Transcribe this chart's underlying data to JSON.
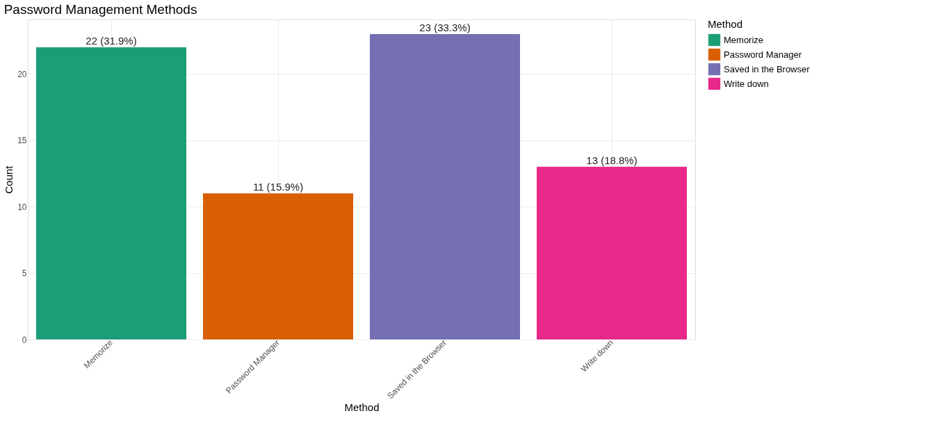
{
  "chart_data": {
    "type": "bar",
    "title": "Password Management Methods",
    "xlabel": "Method",
    "ylabel": "Count",
    "legend_title": "Method",
    "categories": [
      "Memorize",
      "Password Manager",
      "Saved in the Browser",
      "Write down"
    ],
    "series": [
      {
        "name": "Memorize",
        "color": "#1b9e77",
        "values": [
          22,
          null,
          null,
          null
        ],
        "value_labels": [
          "22 (31.9%)",
          null,
          null,
          null
        ]
      },
      {
        "name": "Password Manager",
        "color": "#d95f02",
        "values": [
          null,
          11,
          null,
          null
        ],
        "value_labels": [
          null,
          "11 (15.9%)",
          null,
          null
        ]
      },
      {
        "name": "Saved in the Browser",
        "color": "#7570b3",
        "values": [
          null,
          null,
          23,
          null
        ],
        "value_labels": [
          null,
          null,
          "23 (33.3%)",
          null
        ]
      },
      {
        "name": "Write down",
        "color": "#e7298a",
        "values": [
          null,
          null,
          null,
          13
        ],
        "value_labels": [
          null,
          null,
          null,
          "13 (18.8%)"
        ]
      }
    ],
    "stacked": true,
    "ylim": [
      0,
      24.1
    ],
    "yticks": [
      0,
      5,
      10,
      15,
      20
    ],
    "grid": true,
    "legend": "right"
  }
}
